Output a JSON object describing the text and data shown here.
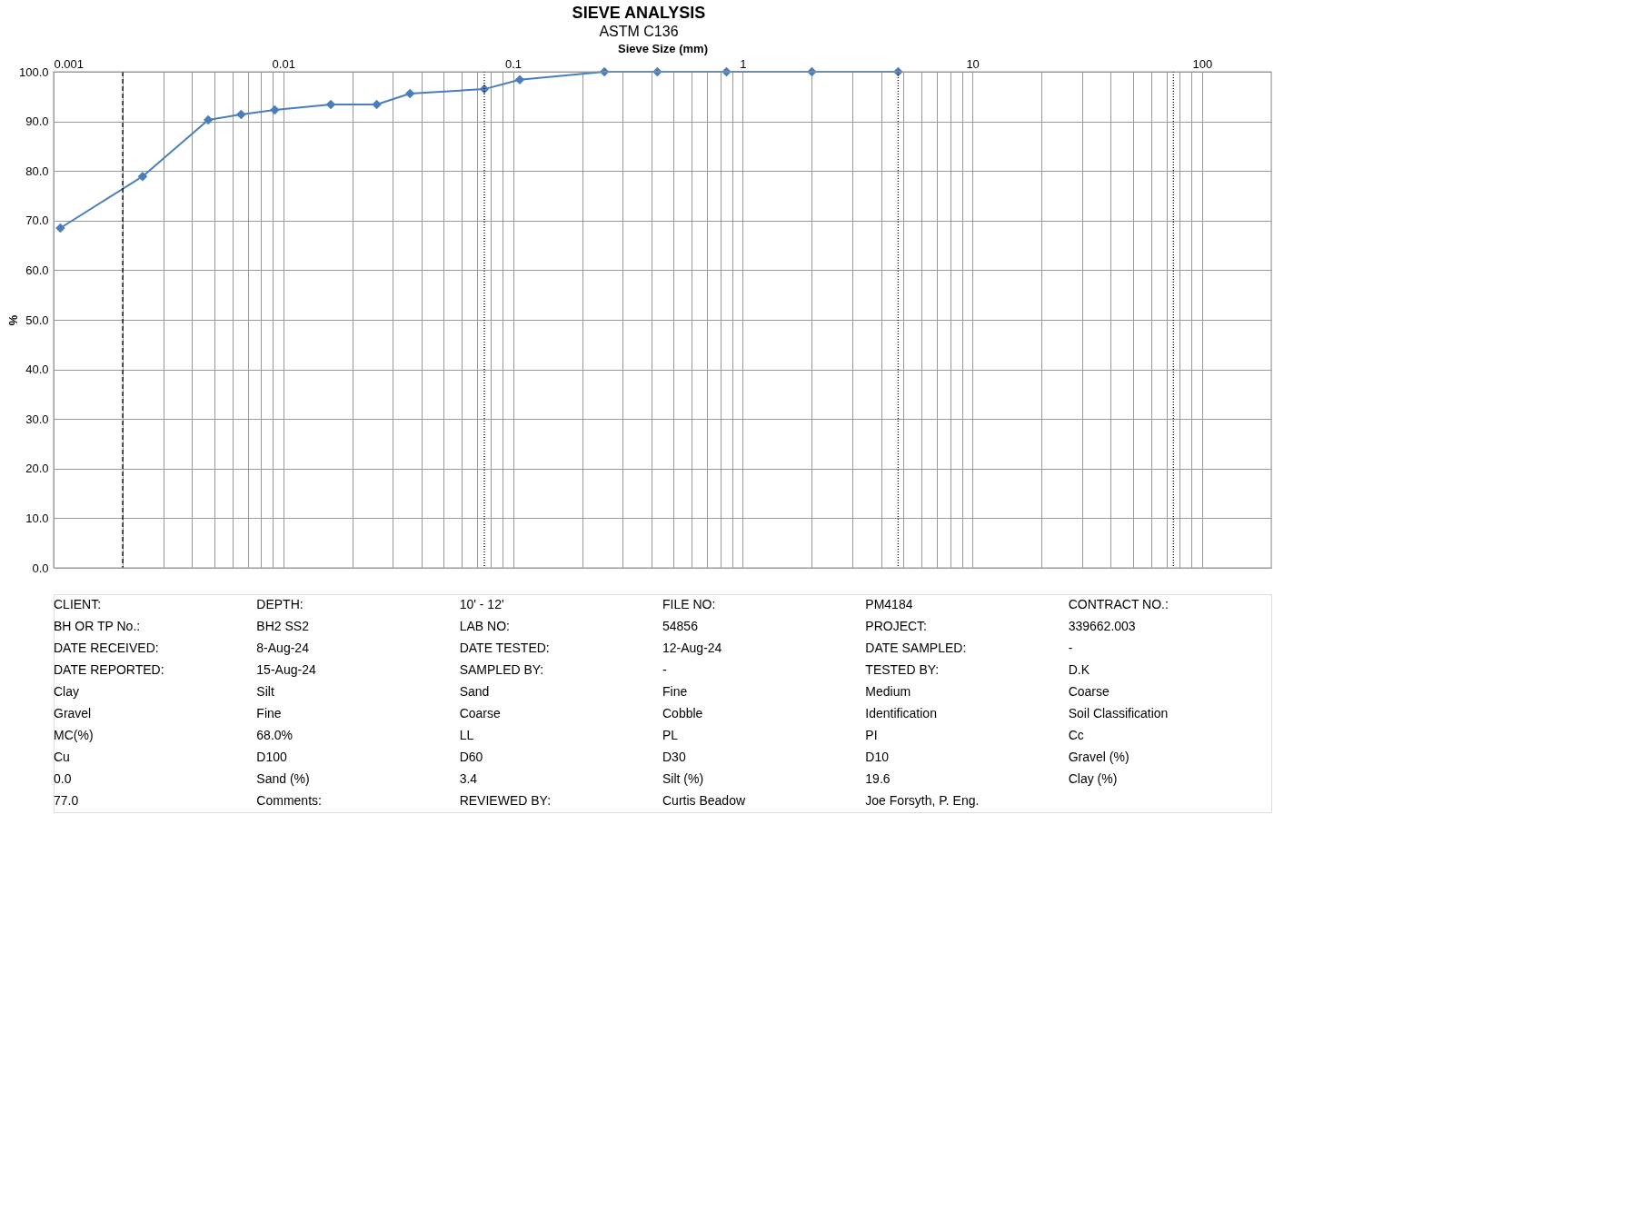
{
  "chart_data": {
    "type": "line",
    "title": "SIEVE ANALYSIS",
    "subtitle": "ASTM C136",
    "xlabel": "Sieve Size (mm)",
    "ylabel": "%",
    "log": "x",
    "grid": true,
    "marker": "diamond",
    "line_style": "solid",
    "xlim": [
      0.001,
      200
    ],
    "ylim": [
      0,
      100
    ],
    "xticks": [
      0.001,
      {
        "value": 0.002,
        "label": null
      },
      {
        "value": 0.003,
        "label": null
      },
      {
        "value": 0.004,
        "label": null
      },
      {
        "value": 0.005,
        "label": null
      },
      {
        "value": 0.006,
        "label": null
      },
      {
        "value": 0.007,
        "label": null
      },
      {
        "value": 0.008,
        "label": null
      },
      {
        "value": 0.009,
        "label": null
      },
      0.01,
      {
        "value": 0.02,
        "label": null
      },
      {
        "value": 0.03,
        "label": null
      },
      {
        "value": 0.04,
        "label": null
      },
      {
        "value": 0.05,
        "label": null
      },
      {
        "value": 0.06,
        "label": null
      },
      {
        "value": 0.07,
        "label": null
      },
      {
        "value": 0.08,
        "label": null
      },
      {
        "value": 0.09,
        "label": null
      },
      0.1,
      {
        "value": 0.2,
        "label": null
      },
      {
        "value": 0.3,
        "label": null
      },
      {
        "value": 0.4,
        "label": null
      },
      {
        "value": 0.5,
        "label": null
      },
      {
        "value": 0.6,
        "label": null
      },
      {
        "value": 0.7,
        "label": null
      },
      {
        "value": 0.8,
        "label": null
      },
      {
        "value": 0.9,
        "label": null
      },
      1,
      {
        "value": 2,
        "label": null
      },
      {
        "value": 3,
        "label": null
      },
      {
        "value": 4,
        "label": null
      },
      {
        "value": 5,
        "label": null
      },
      {
        "value": 6,
        "label": null
      },
      {
        "value": 7,
        "label": null
      },
      {
        "value": 8,
        "label": null
      },
      {
        "value": 9,
        "label": null
      },
      10,
      {
        "value": 20,
        "label": null
      },
      {
        "value": 30,
        "label": null
      },
      {
        "value": 40,
        "label": null
      },
      {
        "value": 50,
        "label": null
      },
      {
        "value": 60,
        "label": null
      },
      {
        "value": 70,
        "label": null
      },
      {
        "value": 80,
        "label": null
      },
      {
        "value": 90,
        "label": null
      },
      100
    ],
    "yticks": [
      {
        "value": 0,
        "label": "0.0"
      },
      {
        "value": 10,
        "label": "10.0"
      },
      {
        "value": 20,
        "label": "20.0"
      },
      {
        "value": 30,
        "label": "30.0"
      },
      {
        "value": 40,
        "label": "40.0"
      },
      {
        "value": 50,
        "label": "50.0"
      },
      {
        "value": 60,
        "label": "60.0"
      },
      {
        "value": 70,
        "label": "70.0"
      },
      {
        "value": 80,
        "label": "80.0"
      },
      {
        "value": 90,
        "label": "90.0"
      },
      {
        "value": 100,
        "label": "100.0"
      }
    ],
    "x": [
      0.00107,
      0.00244,
      0.00471,
      0.00655,
      0.00918,
      0.0161,
      0.0255,
      0.0356,
      0.075,
      0.107,
      0.25,
      0.425,
      0.85,
      2.0,
      4.75
    ],
    "series": [
      {
        "color": "#4a7ebb",
        "values": [
          68.5,
          78.9,
          90.3,
          91.4,
          92.3,
          93.4,
          93.4,
          95.6,
          96.5,
          98.4,
          100,
          100,
          100,
          100,
          100
        ]
      }
    ],
    "ref_lines": [
      {
        "axis": "x",
        "value": 0.002,
        "line_style": "dashed",
        "color": "#000000"
      },
      {
        "axis": "x",
        "value": 0.075,
        "line_style": "dotted",
        "color": "#000000"
      },
      {
        "axis": "x",
        "value": 4.75,
        "line_style": "dotted",
        "color": "#000000"
      },
      {
        "axis": "x",
        "value": 75,
        "line_style": "dotted",
        "color": "#000000"
      }
    ],
    "annotations": [
      "CLIENT:",
      "DEPTH:",
      "10' - 12'",
      "FILE NO:",
      "PM4184",
      "CONTRACT NO.:",
      "BH OR TP No.:",
      "BH2 SS2",
      "LAB NO:",
      "54856",
      "PROJECT:",
      "339662.003",
      "DATE RECEIVED:",
      "8-Aug-24",
      "DATE TESTED:",
      "12-Aug-24",
      "DATE SAMPLED:",
      "-",
      "DATE REPORTED:",
      "15-Aug-24",
      "SAMPLED BY:",
      "-",
      "TESTED BY:",
      "D.K",
      "Clay",
      "Silt",
      "Sand",
      "Fine",
      "Medium",
      "Coarse",
      "Gravel",
      "Fine",
      "Coarse",
      "Cobble",
      "Identification",
      "Soil Classification",
      "MC(%)",
      "68.0%",
      "LL",
      "PL",
      "PI",
      "Cc",
      "Cu",
      "D100",
      "D60",
      "D30",
      "D10",
      "Gravel (%)",
      "0.0",
      "Sand (%)",
      "3.4",
      "Silt (%)",
      "19.6",
      "Clay (%)",
      "77.0",
      "Comments:",
      "REVIEWED BY:",
      "Curtis Beadow",
      "Joe Forsyth, P. Eng."
    ]
  }
}
